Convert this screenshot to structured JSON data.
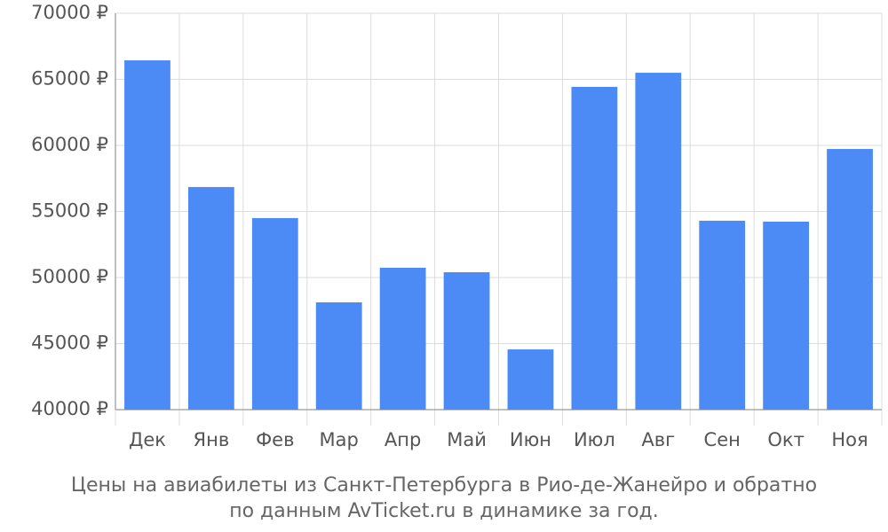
{
  "chart_data": {
    "type": "bar",
    "title": [
      "Цены на авиабилеты из Санкт-Петербурга в Рио-де-Жанейро и обратно",
      "по данным AvTicket.ru в динамике за год."
    ],
    "categories": [
      "Дек",
      "Янв",
      "Фев",
      "Мар",
      "Апр",
      "Май",
      "Июн",
      "Июл",
      "Авг",
      "Сен",
      "Окт",
      "Ноя"
    ],
    "values": [
      66440,
      56850,
      54500,
      48120,
      50740,
      50400,
      44560,
      64430,
      65500,
      54300,
      54230,
      59730
    ],
    "color": "#4c8bf5",
    "ylim": [
      40000,
      70000
    ],
    "yticks": [
      {
        "value": 40000,
        "label": "40000 ₽"
      },
      {
        "value": 45000,
        "label": "45000 ₽"
      },
      {
        "value": 50000,
        "label": "50000 ₽"
      },
      {
        "value": 55000,
        "label": "55000 ₽"
      },
      {
        "value": 60000,
        "label": "60000 ₽"
      },
      {
        "value": 65000,
        "label": "65000 ₽"
      },
      {
        "value": 70000,
        "label": "70000 ₽"
      }
    ],
    "grid": true
  }
}
